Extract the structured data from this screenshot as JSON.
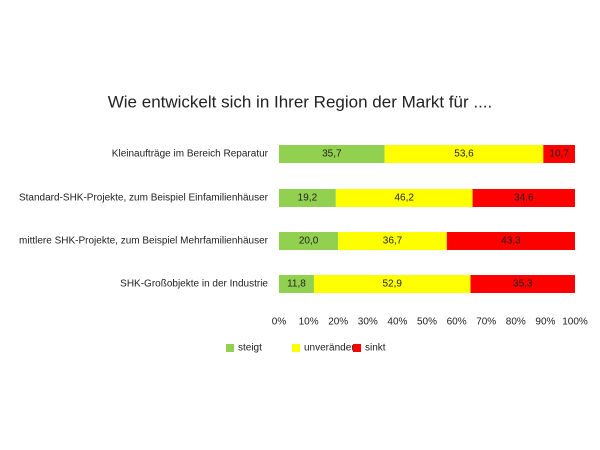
{
  "chart_data": {
    "type": "stacked-bar-horizontal",
    "title": "Wie entwickelt sich in Ihrer Region der Markt für ....",
    "categories": [
      "Kleinaufträge im Bereich Reparatur",
      "Standard-SHK-Projekte, zum Beispiel Einfamilienhäuser",
      "mittlere SHK-Projekte, zum Beispiel Mehrfamilienhäuser",
      "SHK-Großobjekte in der Industrie"
    ],
    "series": [
      {
        "name": "steigt",
        "color": "#92d050",
        "values": [
          35.7,
          19.2,
          20.0,
          11.8
        ],
        "value_labels": [
          "35,7",
          "19,2",
          "20,0",
          "11,8"
        ]
      },
      {
        "name": "unverändert",
        "color": "#ffff00",
        "values": [
          53.6,
          46.2,
          36.7,
          52.9
        ],
        "value_labels": [
          "53,6",
          "46,2",
          "36,7",
          "52,9"
        ]
      },
      {
        "name": "sinkt",
        "color": "#ff0000",
        "values": [
          10.7,
          34.6,
          43.3,
          35.3
        ],
        "value_labels": [
          "10,7",
          "34,6",
          "43,3",
          "35,3"
        ]
      }
    ],
    "xlim": [
      0,
      100
    ],
    "xticks": [
      {
        "value": 0,
        "label": "0%"
      },
      {
        "value": 10,
        "label": "10%"
      },
      {
        "value": 20,
        "label": "20%"
      },
      {
        "value": 30,
        "label": "30%"
      },
      {
        "value": 40,
        "label": "40%"
      },
      {
        "value": 50,
        "label": "50%"
      },
      {
        "value": 60,
        "label": "60%"
      },
      {
        "value": 70,
        "label": "70%"
      },
      {
        "value": 80,
        "label": "80%"
      },
      {
        "value": 90,
        "label": "90%"
      },
      {
        "value": 100,
        "label": "100%"
      }
    ],
    "legend": "bottom"
  }
}
